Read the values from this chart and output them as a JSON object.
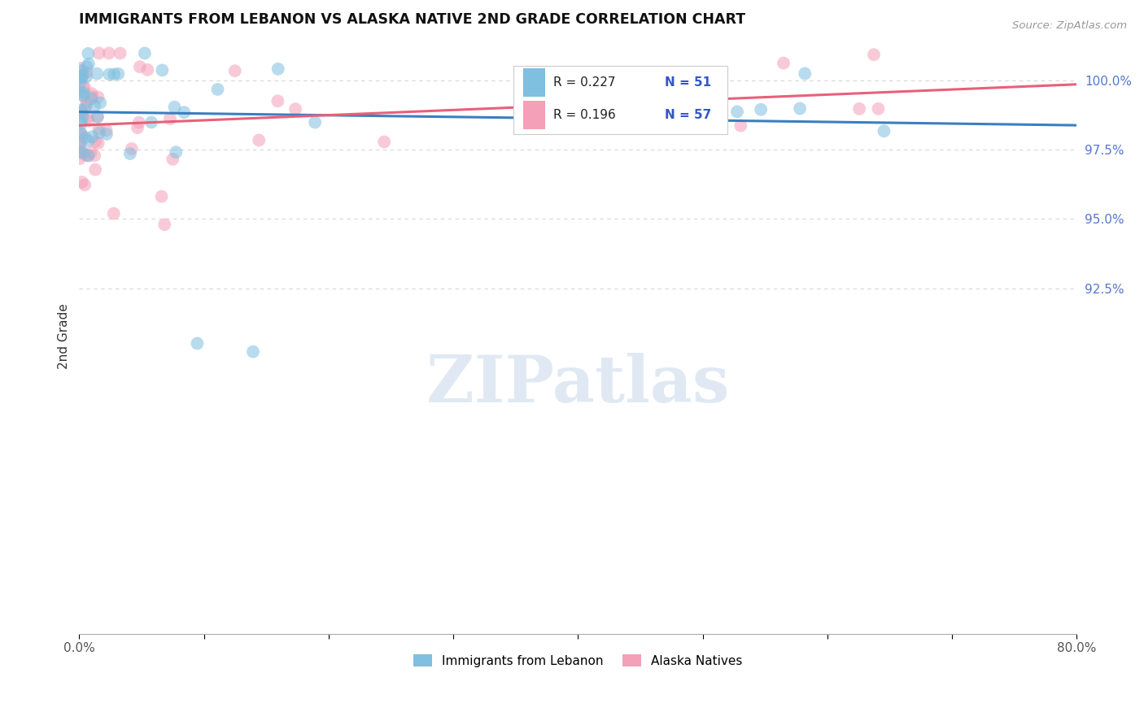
{
  "title": "IMMIGRANTS FROM LEBANON VS ALASKA NATIVE 2ND GRADE CORRELATION CHART",
  "source": "Source: ZipAtlas.com",
  "ylabel": "2nd Grade",
  "xlim": [
    0.0,
    80.0
  ],
  "ylim": [
    80.0,
    101.5
  ],
  "xtick_positions": [
    0.0,
    10.0,
    20.0,
    30.0,
    40.0,
    50.0,
    60.0,
    70.0,
    80.0
  ],
  "xticklabels": [
    "0.0%",
    "",
    "",
    "",
    "",
    "",
    "",
    "",
    "80.0%"
  ],
  "ytick_positions": [
    92.5,
    95.0,
    97.5,
    100.0
  ],
  "yticklabels": [
    "92.5%",
    "95.0%",
    "97.5%",
    "100.0%"
  ],
  "blue_color": "#7fbfdf",
  "pink_color": "#f4a0b8",
  "blue_line_color": "#3a7fc1",
  "pink_line_color": "#e8607a",
  "tick_label_color": "#5577cc",
  "legend_R_blue": "R = 0.227",
  "legend_N_blue": "N = 51",
  "legend_R_pink": "R = 0.196",
  "legend_N_pink": "N = 57",
  "legend_label_blue": "Immigrants from Lebanon",
  "legend_label_pink": "Alaska Natives",
  "watermark_text": "ZIPatlas",
  "watermark_color": "#c8d8ea",
  "background_color": "#ffffff",
  "grid_color": "#bbbbbb",
  "blue_seed": 42,
  "pink_seed": 99
}
